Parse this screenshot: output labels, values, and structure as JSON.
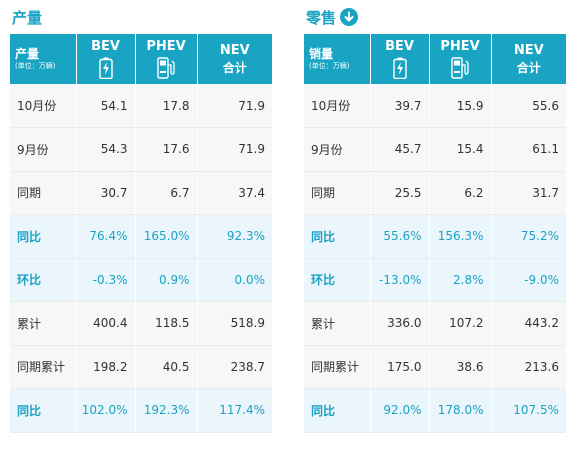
{
  "left": {
    "title": "产量",
    "header": {
      "row_label": "产量",
      "row_unit": "(单位：万辆)",
      "bev": "BEV",
      "phev": "PHEV",
      "nev_line1": "NEV",
      "nev_line2": "合计"
    },
    "rows": [
      {
        "label": "10月份",
        "bev": "54.1",
        "phev": "17.8",
        "nev": "71.9"
      },
      {
        "label": "9月份",
        "bev": "54.3",
        "phev": "17.6",
        "nev": "71.9"
      },
      {
        "label": "同期",
        "bev": "30.7",
        "phev": "6.7",
        "nev": "37.4"
      },
      {
        "label": "同比",
        "bev": "76.4%",
        "phev": "165.0%",
        "nev": "92.3%"
      },
      {
        "label": "环比",
        "bev": "-0.3%",
        "phev": "0.9%",
        "nev": "0.0%"
      },
      {
        "label": "累计",
        "bev": "400.4",
        "phev": "118.5",
        "nev": "518.9"
      },
      {
        "label": "同期累计",
        "bev": "198.2",
        "phev": "40.5",
        "nev": "238.7"
      },
      {
        "label": "同比",
        "bev": "102.0%",
        "phev": "192.3%",
        "nev": "117.4%"
      }
    ]
  },
  "right": {
    "title": "零售",
    "header": {
      "row_label": "销量",
      "row_unit": "(单位：万辆)",
      "bev": "BEV",
      "phev": "PHEV",
      "nev_line1": "NEV",
      "nev_line2": "合计"
    },
    "rows": [
      {
        "label": "10月份",
        "bev": "39.7",
        "phev": "15.9",
        "nev": "55.6"
      },
      {
        "label": "9月份",
        "bev": "45.7",
        "phev": "15.4",
        "nev": "61.1"
      },
      {
        "label": "同期",
        "bev": "25.5",
        "phev": "6.2",
        "nev": "31.7"
      },
      {
        "label": "同比",
        "bev": "55.6%",
        "phev": "156.3%",
        "nev": "75.2%"
      },
      {
        "label": "环比",
        "bev": "-13.0%",
        "phev": "2.8%",
        "nev": "-9.0%"
      },
      {
        "label": "累计",
        "bev": "336.0",
        "phev": "107.2",
        "nev": "443.2"
      },
      {
        "label": "同期累计",
        "bev": "175.0",
        "phev": "38.6",
        "nev": "213.6"
      },
      {
        "label": "同比",
        "bev": "92.0%",
        "phev": "178.0%",
        "nev": "107.5%"
      }
    ]
  },
  "icons": {
    "bev": "battery-bolt-icon",
    "phev": "fuel-pump-icon",
    "down": "arrow-down-circle-icon"
  },
  "colors": {
    "accent": "#1aa4c4",
    "highlight_row": "#eaf5fc",
    "normal_row": "#f7f7f7"
  }
}
